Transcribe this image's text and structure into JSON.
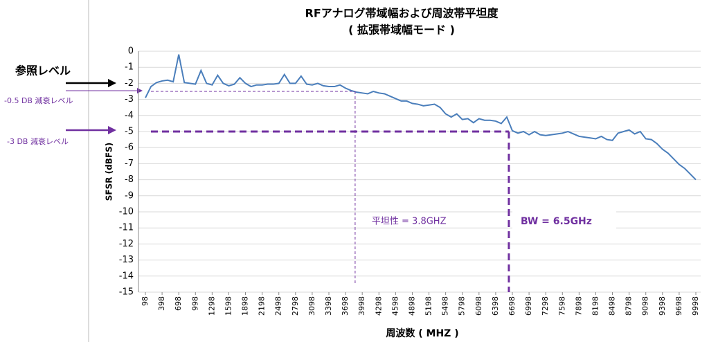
{
  "chart_data": {
    "type": "line",
    "title": "RFアナログ帯域幅および周波帯平坦度",
    "subtitle": "( 拡張帯域幅モード )",
    "x_label": "周波数 ( MHZ )",
    "y_label": "SFSR (dBFS)",
    "x": [
      98,
      198,
      298,
      398,
      498,
      598,
      698,
      798,
      898,
      998,
      1098,
      1198,
      1298,
      1398,
      1498,
      1598,
      1698,
      1798,
      1898,
      1998,
      2098,
      2198,
      2298,
      2398,
      2498,
      2598,
      2698,
      2798,
      2898,
      2998,
      3098,
      3198,
      3298,
      3398,
      3498,
      3598,
      3698,
      3798,
      3898,
      3998,
      4098,
      4198,
      4298,
      4398,
      4498,
      4598,
      4698,
      4798,
      4898,
      4998,
      5098,
      5198,
      5298,
      5398,
      5498,
      5598,
      5698,
      5798,
      5898,
      5998,
      6098,
      6198,
      6298,
      6398,
      6498,
      6598,
      6698,
      6798,
      6898,
      6998,
      7098,
      7198,
      7298,
      7398,
      7498,
      7598,
      7698,
      7798,
      7898,
      7998,
      8098,
      8198,
      8298,
      8398,
      8498,
      8598,
      8698,
      8798,
      8898,
      8998,
      9098,
      9198,
      9298,
      9398,
      9498,
      9598,
      9698,
      9798,
      9898,
      9998
    ],
    "series": [
      {
        "color": "#4a7ebb",
        "values": [
          -2.9,
          -2.2,
          -1.95,
          -1.85,
          -1.8,
          -1.9,
          -0.2,
          -1.95,
          -2.0,
          -2.05,
          -1.2,
          -2.0,
          -2.1,
          -1.5,
          -2.0,
          -2.15,
          -2.05,
          -1.65,
          -2.0,
          -2.2,
          -2.1,
          -2.1,
          -2.05,
          -2.05,
          -2.0,
          -1.45,
          -2.0,
          -2.0,
          -1.55,
          -2.05,
          -2.1,
          -2.0,
          -2.15,
          -2.2,
          -2.2,
          -2.1,
          -2.3,
          -2.45,
          -2.55,
          -2.6,
          -2.65,
          -2.5,
          -2.6,
          -2.65,
          -2.8,
          -2.95,
          -3.1,
          -3.1,
          -3.25,
          -3.3,
          -3.4,
          -3.35,
          -3.3,
          -3.5,
          -3.9,
          -4.1,
          -3.9,
          -4.25,
          -4.2,
          -4.45,
          -4.2,
          -4.3,
          -4.3,
          -4.35,
          -4.5,
          -4.1,
          -4.95,
          -5.1,
          -5.0,
          -5.2,
          -5.0,
          -5.2,
          -5.25,
          -5.2,
          -5.15,
          -5.1,
          -5.0,
          -5.15,
          -5.3,
          -5.35,
          -5.4,
          -5.45,
          -5.3,
          -5.5,
          -5.55,
          -5.1,
          -5.0,
          -4.9,
          -5.15,
          -5.0,
          -5.45,
          -5.5,
          -5.75,
          -6.1,
          -6.35,
          -6.7,
          -7.05,
          -7.3,
          -7.65,
          -8.0
        ]
      }
    ],
    "xlim": [
      98,
      9998
    ],
    "xticks": [
      98,
      398,
      698,
      998,
      1298,
      1598,
      1898,
      2198,
      2498,
      2798,
      3098,
      3398,
      3698,
      3998,
      4298,
      4598,
      4898,
      5198,
      5498,
      5798,
      6098,
      6398,
      6698,
      6998,
      7298,
      7598,
      7898,
      8198,
      8498,
      8798,
      9098,
      9398,
      9698,
      9998
    ],
    "ylim": [
      -15,
      0
    ],
    "yticks": [
      0,
      -1,
      -2,
      -3,
      -4,
      -5,
      -6,
      -7,
      -8,
      -9,
      -10,
      -11,
      -12,
      -13,
      -14,
      -15
    ],
    "grid": true,
    "reference_lines": [
      {
        "x": 3870,
        "y": -2.5,
        "color": "#7030a0",
        "label": "平坦性 = 3.8GHZ"
      },
      {
        "x": 6635,
        "y": -5,
        "color": "#7030a0",
        "label": "BW = 6.5GHz"
      }
    ],
    "side_labels": [
      "参照レベル",
      "-0.5 DB 減衰レベル",
      "-3 DB 減衰レベル"
    ]
  }
}
